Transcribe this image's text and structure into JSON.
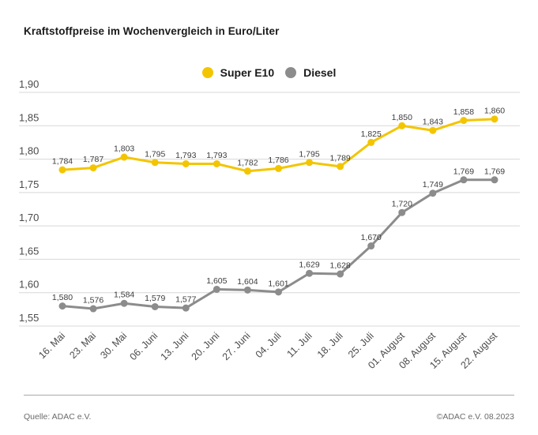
{
  "title": "Kraftstoffpreise im Wochenvergleich in Euro/Liter",
  "legend": {
    "items": [
      {
        "label": "Super E10",
        "color": "#f3c500"
      },
      {
        "label": "Diesel",
        "color": "#8c8c8c"
      }
    ]
  },
  "footer": {
    "source": "Quelle: ADAC e.V.",
    "copyright": "©ADAC e.V. 08.2023"
  },
  "colors": {
    "gridline": "#d8d8d8",
    "axis_label": "#4a4a4a",
    "value_label": "#3c3c3c"
  },
  "chart_data": {
    "type": "line",
    "title": "Kraftstoffpreise im Wochenvergleich in Euro/Liter",
    "xlabel": "",
    "ylabel": "Euro/Liter",
    "ylim": [
      1.55,
      1.9
    ],
    "ytick_step": 0.05,
    "grid": true,
    "legend_position": "top-center",
    "categories": [
      "16. Mai",
      "23. Mai",
      "30. Mai",
      "06. Juni",
      "13. Juni",
      "20. Juni",
      "27. Juni",
      "04. Juli",
      "11. Juli",
      "18. Juli",
      "25. Juli",
      "01. August",
      "08. August",
      "15. August",
      "22. August"
    ],
    "series": [
      {
        "name": "Super E10",
        "color": "#f3c500",
        "values": [
          1.784,
          1.787,
          1.803,
          1.795,
          1.793,
          1.793,
          1.782,
          1.786,
          1.795,
          1.789,
          1.825,
          1.85,
          1.843,
          1.858,
          1.86
        ]
      },
      {
        "name": "Diesel",
        "color": "#8c8c8c",
        "values": [
          1.58,
          1.576,
          1.584,
          1.579,
          1.577,
          1.605,
          1.604,
          1.601,
          1.629,
          1.628,
          1.67,
          1.72,
          1.749,
          1.769,
          1.769
        ]
      }
    ]
  }
}
